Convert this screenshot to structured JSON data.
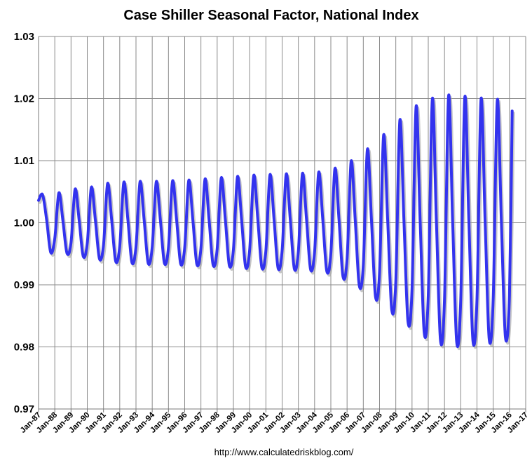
{
  "chart_data": {
    "type": "line",
    "title": "Case Shiller Seasonal Factor, National Index",
    "xlabel": "",
    "ylabel": "",
    "source": "http://www.calculatedriskblog.com/",
    "x_range": [
      "Jan-87",
      "Jan-17"
    ],
    "ylim": [
      0.97,
      1.03
    ],
    "yticks": [
      "0.97",
      "0.98",
      "0.99",
      "1.00",
      "1.01",
      "1.02",
      "1.03"
    ],
    "xticks": [
      "Jan-87",
      "Jan-88",
      "Jan-89",
      "Jan-90",
      "Jan-91",
      "Jan-92",
      "Jan-93",
      "Jan-94",
      "Jan-95",
      "Jan-96",
      "Jan-97",
      "Jan-98",
      "Jan-99",
      "Jan-00",
      "Jan-01",
      "Jan-02",
      "Jan-03",
      "Jan-04",
      "Jan-05",
      "Jan-06",
      "Jan-07",
      "Jan-08",
      "Jan-09",
      "Jan-10",
      "Jan-11",
      "Jan-12",
      "Jan-13",
      "Jan-14",
      "Jan-15",
      "Jan-16",
      "Jan-17"
    ],
    "grid": true,
    "legend": "none",
    "line_color": "#3333ee",
    "series": [
      {
        "name": "",
        "x": [
          "1987-01",
          "1987-04",
          "1987-07",
          "1987-10",
          "1988-01",
          "1988-04",
          "1988-07",
          "1988-10",
          "1989-01",
          "1989-04",
          "1989-07",
          "1989-10",
          "1990-01",
          "1990-04",
          "1990-07",
          "1990-10",
          "1991-01",
          "1991-04",
          "1991-07",
          "1991-10",
          "1992-01",
          "1992-04",
          "1992-07",
          "1992-10",
          "1993-01",
          "1993-04",
          "1993-07",
          "1993-10",
          "1994-01",
          "1994-04",
          "1994-07",
          "1994-10",
          "1995-01",
          "1995-04",
          "1995-07",
          "1995-10",
          "1996-01",
          "1996-04",
          "1996-07",
          "1996-10",
          "1997-01",
          "1997-04",
          "1997-07",
          "1997-10",
          "1998-01",
          "1998-04",
          "1998-07",
          "1998-10",
          "1999-01",
          "1999-04",
          "1999-07",
          "1999-10",
          "2000-01",
          "2000-04",
          "2000-07",
          "2000-10",
          "2001-01",
          "2001-04",
          "2001-07",
          "2001-10",
          "2002-01",
          "2002-04",
          "2002-07",
          "2002-10",
          "2003-01",
          "2003-04",
          "2003-07",
          "2003-10",
          "2004-01",
          "2004-04",
          "2004-07",
          "2004-10",
          "2005-01",
          "2005-04",
          "2005-07",
          "2005-10",
          "2006-01",
          "2006-04",
          "2006-07",
          "2006-10",
          "2007-01",
          "2007-04",
          "2007-07",
          "2007-10",
          "2008-01",
          "2008-04",
          "2008-07",
          "2008-10",
          "2009-01",
          "2009-04",
          "2009-07",
          "2009-10",
          "2010-01",
          "2010-04",
          "2010-07",
          "2010-10",
          "2011-01",
          "2011-04",
          "2011-07",
          "2011-10",
          "2012-01",
          "2012-04",
          "2012-07",
          "2012-10",
          "2013-01",
          "2013-04",
          "2013-07",
          "2013-10",
          "2014-01",
          "2014-04",
          "2014-07",
          "2014-10",
          "2015-01",
          "2015-04",
          "2015-07",
          "2015-10",
          "2016-01",
          "2016-03"
        ],
        "values": [
          1.0036,
          1.0045,
          1.0004,
          0.9952,
          0.9975,
          1.0048,
          1.0003,
          0.9951,
          0.9968,
          1.0054,
          1.0004,
          0.9946,
          0.9967,
          1.0057,
          1.0004,
          0.9942,
          0.9964,
          1.0063,
          1.0005,
          0.9938,
          0.9962,
          1.0065,
          1.0005,
          0.9936,
          0.9961,
          1.0066,
          1.0005,
          0.9935,
          0.9961,
          1.0066,
          1.0005,
          0.9935,
          0.996,
          1.0067,
          1.0005,
          0.9934,
          0.996,
          1.0068,
          1.0005,
          0.9933,
          0.9959,
          1.007,
          1.0005,
          0.9932,
          0.9958,
          1.0072,
          1.0006,
          0.9931,
          0.9957,
          1.0074,
          1.0006,
          0.9929,
          0.9956,
          1.0076,
          1.0006,
          0.9928,
          0.9955,
          1.0077,
          1.0006,
          0.9927,
          0.9955,
          1.0078,
          1.0006,
          0.9926,
          0.9954,
          1.0079,
          1.0006,
          0.9925,
          0.9953,
          1.0081,
          1.0006,
          0.9922,
          0.995,
          1.0087,
          1.0006,
          0.9913,
          0.9942,
          1.0099,
          1.0005,
          0.9899,
          0.9932,
          1.0118,
          1.0005,
          0.9881,
          0.992,
          1.0141,
          1.0004,
          0.986,
          0.9905,
          1.0165,
          1.0004,
          0.9841,
          0.9893,
          1.0187,
          1.0003,
          0.9823,
          0.9883,
          1.0199,
          1.0003,
          0.9811,
          0.9877,
          1.0204,
          1.0003,
          0.9808,
          0.9876,
          1.0202,
          1.0003,
          0.981,
          0.9877,
          1.0199,
          1.0003,
          0.9813,
          0.9879,
          1.0197,
          1.0003,
          0.9816,
          0.9882,
          1.018
        ]
      }
    ]
  }
}
